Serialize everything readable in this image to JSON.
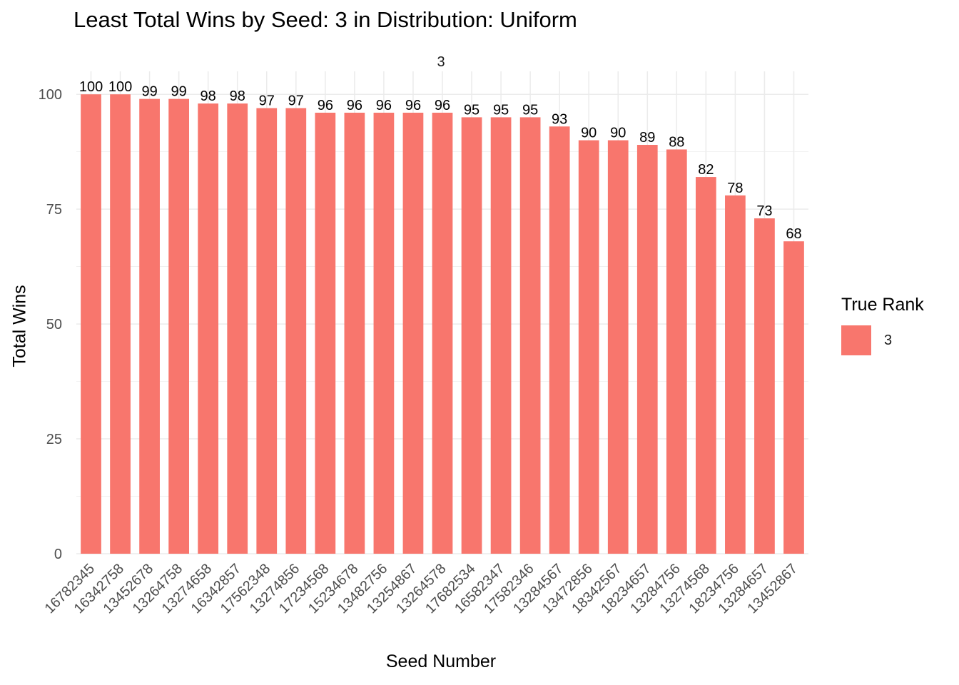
{
  "chart_data": {
    "type": "bar",
    "title": "Least Total Wins by Seed: 3 in Distribution: Uniform",
    "facet_label": "3",
    "xlabel": "Seed Number",
    "ylabel": "Total Wins",
    "categories": [
      "16782345",
      "16342758",
      "13452678",
      "13264758",
      "13274658",
      "16342857",
      "17562348",
      "13274856",
      "17234568",
      "15234678",
      "13482756",
      "13254867",
      "13264578",
      "17682534",
      "16582347",
      "17582346",
      "13284567",
      "13472856",
      "18342567",
      "18234657",
      "13284756",
      "13274568",
      "18234756",
      "13284657",
      "13452867"
    ],
    "series": [
      {
        "name": "3",
        "values": [
          100,
          100,
          99,
          99,
          98,
          98,
          97,
          97,
          96,
          96,
          96,
          96,
          96,
          95,
          95,
          95,
          93,
          90,
          90,
          89,
          88,
          82,
          78,
          73,
          68
        ]
      }
    ],
    "ylim": [
      0,
      105
    ],
    "yticks": [
      0,
      25,
      50,
      75,
      100
    ],
    "grid": true,
    "legend": {
      "title": "True Rank",
      "position": "right",
      "entries": [
        "3"
      ]
    },
    "bar_color": "#F8766D",
    "grid_color": "#EBEBEB"
  }
}
